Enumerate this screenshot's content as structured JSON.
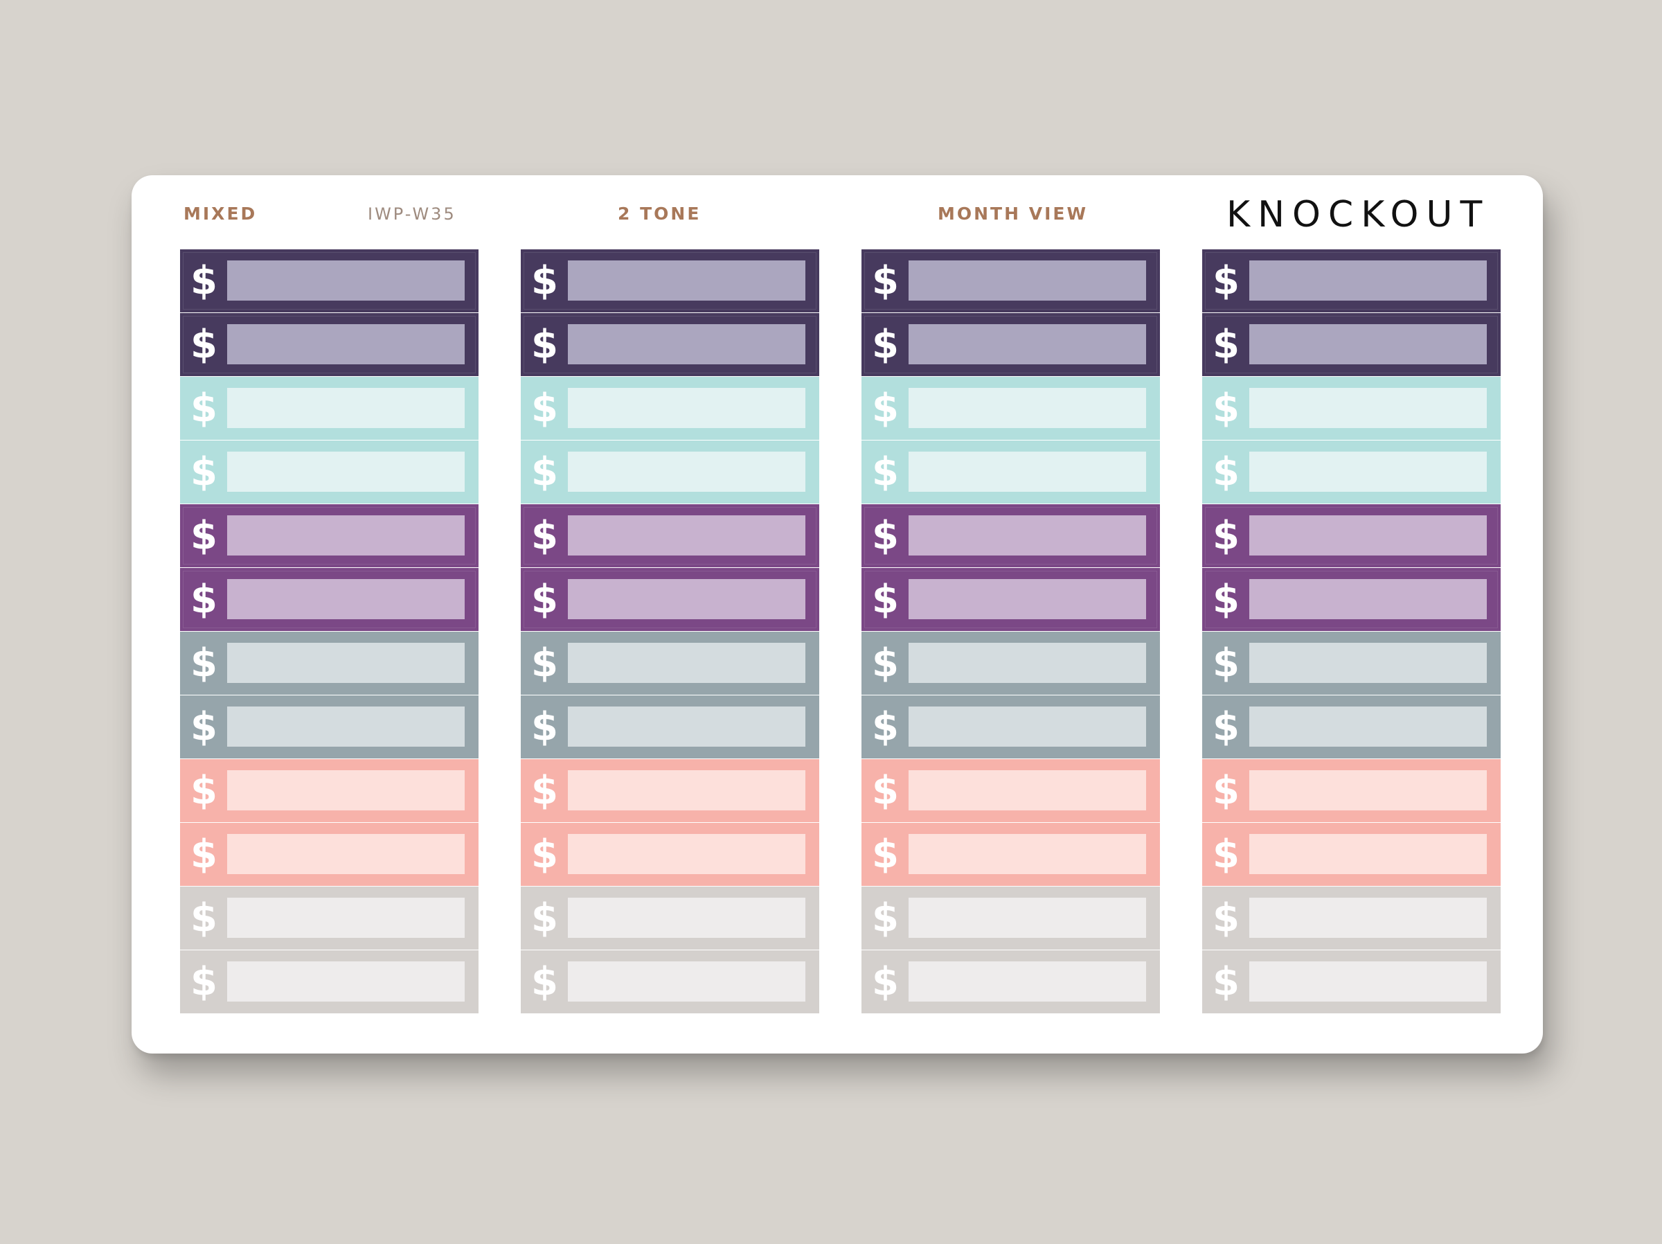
{
  "sheet": {
    "labels": {
      "mixed": "MIXED",
      "code": "IWP-W35",
      "two_tone": "2 TONE",
      "month_view": "MONTH VIEW",
      "brand": "KNOCKOUT"
    },
    "label_color": "#a87859",
    "code_color": "#9e8b7f",
    "brand_color": "#111111"
  },
  "columns": [
    {
      "name": "column-1"
    },
    {
      "name": "column-2"
    },
    {
      "name": "column-3"
    },
    {
      "name": "column-4"
    }
  ],
  "stickers": [
    {
      "symbol": "$",
      "bg": "#473a5e",
      "box": "#aba6bf",
      "dark": true
    },
    {
      "symbol": "$",
      "bg": "#473a5e",
      "box": "#aba6bf",
      "dark": true
    },
    {
      "symbol": "$",
      "bg": "#b2dfdd",
      "box": "#e2f2f2",
      "dark": false
    },
    {
      "symbol": "$",
      "bg": "#b2dfdd",
      "box": "#e2f2f2",
      "dark": false
    },
    {
      "symbol": "$",
      "bg": "#7b4886",
      "box": "#c8b2cf",
      "dark": true
    },
    {
      "symbol": "$",
      "bg": "#7b4886",
      "box": "#c8b2cf",
      "dark": true
    },
    {
      "symbol": "$",
      "bg": "#96a5ab",
      "box": "#d4dcdf",
      "dark": false
    },
    {
      "symbol": "$",
      "bg": "#96a5ab",
      "box": "#d4dcdf",
      "dark": false
    },
    {
      "symbol": "$",
      "bg": "#f7b2aa",
      "box": "#fde0db",
      "dark": false
    },
    {
      "symbol": "$",
      "bg": "#f7b2aa",
      "box": "#fde0db",
      "dark": false
    },
    {
      "symbol": "$",
      "bg": "#d4d0cd",
      "box": "#eeecec",
      "dark": false
    },
    {
      "symbol": "$",
      "bg": "#d4d0cd",
      "box": "#eeecec",
      "dark": false
    }
  ]
}
